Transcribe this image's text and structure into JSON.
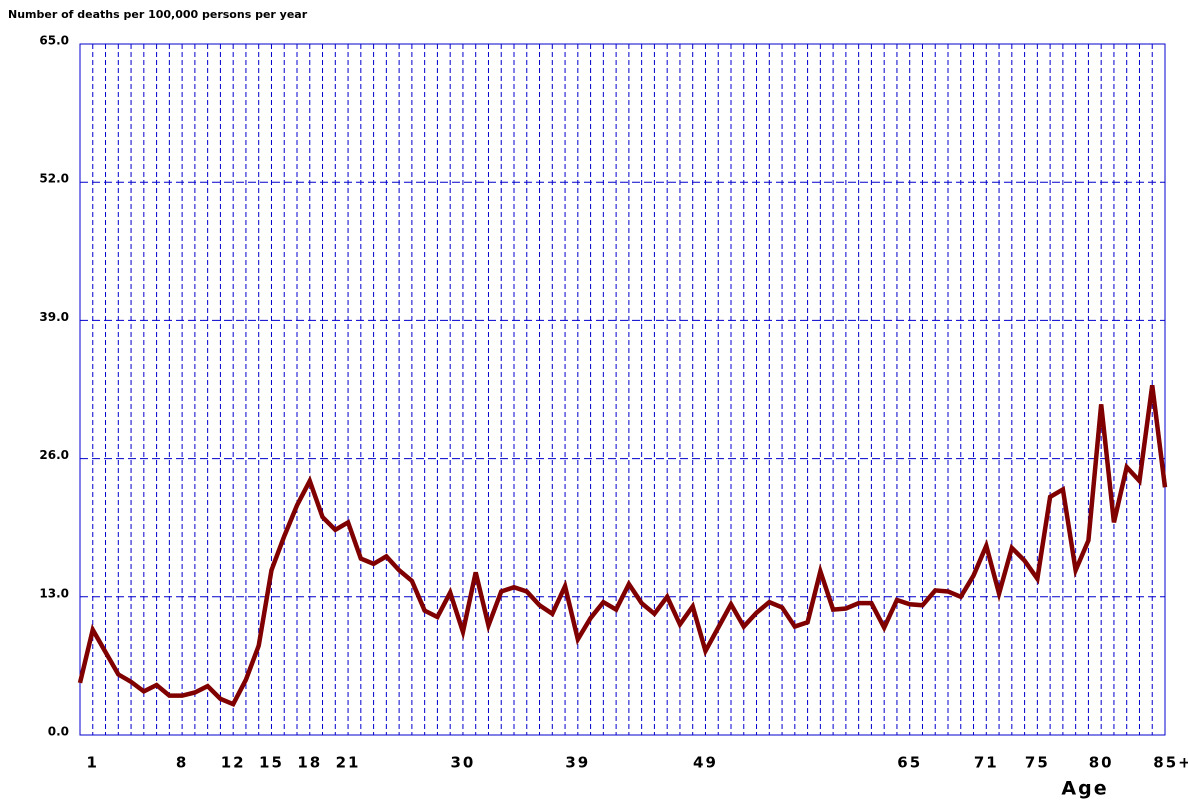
{
  "chart_data": {
    "type": "line",
    "y_axis_label": "Number of deaths per 100,000 persons per year",
    "x_axis_label": "Age",
    "categories": [
      null,
      "1",
      null,
      null,
      null,
      null,
      null,
      null,
      "8",
      null,
      null,
      null,
      "12",
      null,
      null,
      "15",
      null,
      null,
      "18",
      null,
      null,
      "21",
      null,
      null,
      null,
      null,
      null,
      null,
      null,
      null,
      "30",
      null,
      null,
      null,
      null,
      null,
      null,
      null,
      null,
      "39",
      null,
      null,
      null,
      null,
      null,
      null,
      null,
      null,
      null,
      "49",
      null,
      null,
      null,
      null,
      null,
      null,
      null,
      null,
      null,
      null,
      null,
      null,
      null,
      null,
      null,
      "65",
      null,
      null,
      null,
      null,
      null,
      "71",
      null,
      null,
      null,
      "75",
      null,
      null,
      null,
      null,
      "80",
      null,
      null,
      null,
      null,
      "85+"
    ],
    "series": [
      {
        "name": "Deaths",
        "color": "#800000",
        "values": [
          4.9,
          9.9,
          7.8,
          5.7,
          5.0,
          4.1,
          4.7,
          3.7,
          3.7,
          4.0,
          4.6,
          3.4,
          2.9,
          5.2,
          8.4,
          15.5,
          18.7,
          21.6,
          23.9,
          20.5,
          19.3,
          20.0,
          16.6,
          16.1,
          16.8,
          15.5,
          14.5,
          11.7,
          11.1,
          13.4,
          9.7,
          15.3,
          10.3,
          13.5,
          13.9,
          13.5,
          12.2,
          11.4,
          14.0,
          9.0,
          11.0,
          12.5,
          11.8,
          14.2,
          12.4,
          11.4,
          13.0,
          10.4,
          12.1,
          7.9,
          10.1,
          12.3,
          10.2,
          11.5,
          12.5,
          12.0,
          10.2,
          10.6,
          15.4,
          11.8,
          11.9,
          12.4,
          12.4,
          10.1,
          12.7,
          12.3,
          12.2,
          13.6,
          13.5,
          13.0,
          15.0,
          17.8,
          13.3,
          17.6,
          16.4,
          14.7,
          22.4,
          23.1,
          15.5,
          18.3,
          31.1,
          20.0,
          25.2,
          23.9,
          32.9,
          23.3
        ]
      }
    ],
    "ylim": [
      0,
      65
    ],
    "yticks": [
      {
        "value": 0,
        "label": "0.0"
      },
      {
        "value": 13,
        "label": "13.0"
      },
      {
        "value": 26,
        "label": "26.0"
      },
      {
        "value": 39,
        "label": "39.0"
      },
      {
        "value": 52,
        "label": "52.0"
      },
      {
        "value": 65,
        "label": "65.0"
      }
    ],
    "grid": true,
    "grid_color": "#0000cc"
  }
}
